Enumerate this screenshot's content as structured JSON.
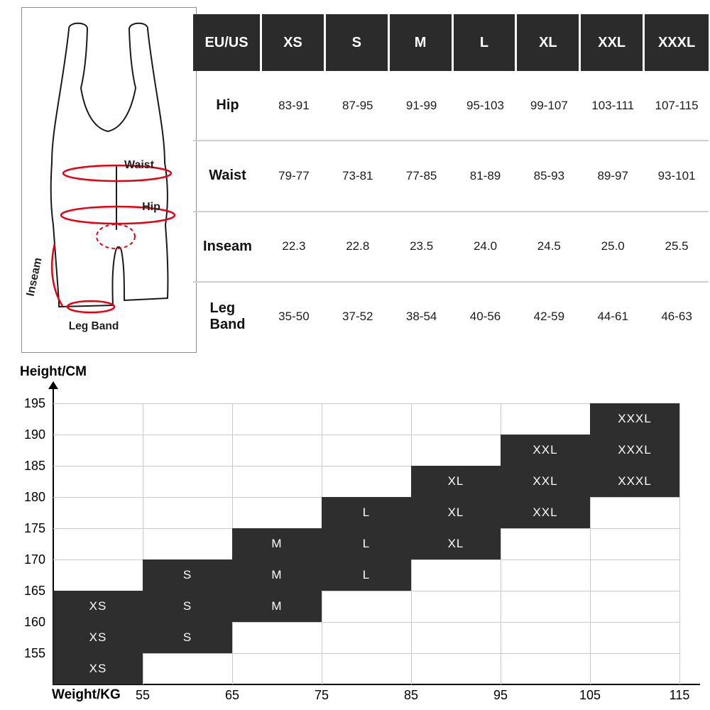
{
  "measurement_diagram": {
    "waist_label": "Waist",
    "hip_label": "Hip",
    "inseam_label": "Inseam",
    "leg_band_label": "Leg Band",
    "annotation_color": "#e60012"
  },
  "size_table": {
    "header_bg": "#2b2b2b",
    "header": [
      "EU/US",
      "XS",
      "S",
      "M",
      "L",
      "XL",
      "XXL",
      "XXXL"
    ],
    "rows": [
      {
        "label": "Hip",
        "values": [
          "83-91",
          "87-95",
          "91-99",
          "95-103",
          "99-107",
          "103-111",
          "107-115"
        ]
      },
      {
        "label": "Waist",
        "values": [
          "79-77",
          "73-81",
          "77-85",
          "81-89",
          "85-93",
          "89-97",
          "93-101"
        ]
      },
      {
        "label": "Inseam",
        "values": [
          "22.3",
          "22.8",
          "23.5",
          "24.0",
          "24.5",
          "25.0",
          "25.5"
        ]
      },
      {
        "label": "Leg\nBand",
        "values": [
          "35-50",
          "37-52",
          "38-54",
          "40-56",
          "42-59",
          "44-61",
          "46-63"
        ]
      }
    ]
  },
  "chart_data": {
    "type": "heatmap",
    "title": "",
    "ylabel": "Height/CM",
    "xlabel": "Weight/KG",
    "x_ticks": [
      "55",
      "65",
      "75",
      "85",
      "95",
      "105",
      "115"
    ],
    "y_ticks": [
      "195",
      "190",
      "185",
      "180",
      "175",
      "170",
      "165",
      "160",
      "155"
    ],
    "x_range": [
      45,
      115
    ],
    "y_range": [
      150,
      195
    ],
    "grid": true,
    "cell_color": "#2e2e2e",
    "cells": [
      {
        "size": "XXXL",
        "height": "190-195",
        "weight": "105-115",
        "row": 0,
        "col": 6
      },
      {
        "size": "XXL",
        "height": "185-190",
        "weight": "95-105",
        "row": 1,
        "col": 5
      },
      {
        "size": "XXXL",
        "height": "185-190",
        "weight": "105-115",
        "row": 1,
        "col": 6
      },
      {
        "size": "XL",
        "height": "180-185",
        "weight": "85-95",
        "row": 2,
        "col": 4
      },
      {
        "size": "XXL",
        "height": "180-185",
        "weight": "95-105",
        "row": 2,
        "col": 5
      },
      {
        "size": "XXXL",
        "height": "180-185",
        "weight": "105-115",
        "row": 2,
        "col": 6
      },
      {
        "size": "L",
        "height": "175-180",
        "weight": "75-85",
        "row": 3,
        "col": 3
      },
      {
        "size": "XL",
        "height": "175-180",
        "weight": "85-95",
        "row": 3,
        "col": 4
      },
      {
        "size": "XXL",
        "height": "175-180",
        "weight": "95-105",
        "row": 3,
        "col": 5
      },
      {
        "size": "M",
        "height": "170-175",
        "weight": "65-75",
        "row": 4,
        "col": 2
      },
      {
        "size": "L",
        "height": "170-175",
        "weight": "75-85",
        "row": 4,
        "col": 3
      },
      {
        "size": "XL",
        "height": "170-175",
        "weight": "85-95",
        "row": 4,
        "col": 4
      },
      {
        "size": "S",
        "height": "165-170",
        "weight": "55-65",
        "row": 5,
        "col": 1
      },
      {
        "size": "M",
        "height": "165-170",
        "weight": "65-75",
        "row": 5,
        "col": 2
      },
      {
        "size": "L",
        "height": "165-170",
        "weight": "75-85",
        "row": 5,
        "col": 3
      },
      {
        "size": "XS",
        "height": "160-165",
        "weight": "45-55",
        "row": 6,
        "col": 0
      },
      {
        "size": "S",
        "height": "160-165",
        "weight": "55-65",
        "row": 6,
        "col": 1
      },
      {
        "size": "M",
        "height": "160-165",
        "weight": "65-75",
        "row": 6,
        "col": 2
      },
      {
        "size": "XS",
        "height": "155-160",
        "weight": "45-55",
        "row": 7,
        "col": 0
      },
      {
        "size": "S",
        "height": "155-160",
        "weight": "55-65",
        "row": 7,
        "col": 1
      },
      {
        "size": "XS",
        "height": "150-155",
        "weight": "45-55",
        "row": 8,
        "col": 0
      }
    ]
  }
}
